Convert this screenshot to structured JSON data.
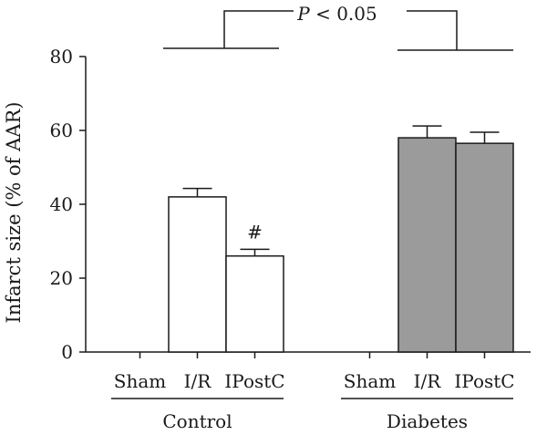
{
  "chart_data": {
    "type": "bar",
    "ylabel": "Infarct size (% of AAR)",
    "ylim": [
      0,
      80
    ],
    "yticks": [
      0,
      20,
      40,
      60,
      80
    ],
    "categories": [
      "Sham",
      "I/R",
      "IPostC",
      "Sham",
      "I/R",
      "IPostC"
    ],
    "groups": [
      {
        "name": "Control",
        "categories": [
          "Sham",
          "I/R",
          "IPostC"
        ],
        "values": [
          0,
          42,
          26
        ],
        "errors": [
          0,
          2.3,
          1.8
        ],
        "color": "#ffffff"
      },
      {
        "name": "Diabetes",
        "categories": [
          "Sham",
          "I/R",
          "IPostC"
        ],
        "values": [
          0,
          58,
          56.5
        ],
        "errors": [
          0,
          3.2,
          3.0
        ],
        "color": "#9b9b9b"
      }
    ],
    "annotations": [
      {
        "text": "#",
        "group": 0,
        "bar": 2
      }
    ],
    "significance": {
      "label_prefix": "P",
      "label_rest": " < 0.05"
    }
  }
}
